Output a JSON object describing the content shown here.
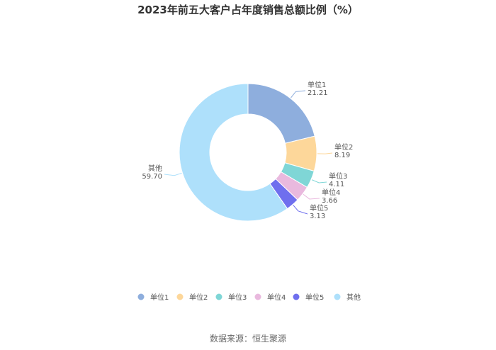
{
  "title": "2023年前五大客户占年度销售总额比例（%）",
  "source": "数据来源：恒生聚源",
  "chart_data": {
    "type": "pie",
    "donut": true,
    "categories": [
      "单位1",
      "单位2",
      "单位3",
      "单位4",
      "单位5",
      "其他"
    ],
    "values": [
      21.21,
      8.19,
      4.11,
      3.66,
      3.13,
      59.7
    ],
    "value_labels": [
      "21.21",
      "8.19",
      "4.11",
      "3.66",
      "3.13",
      "59.70"
    ],
    "colors": [
      "#8eaedd",
      "#fdd79a",
      "#7fd6d6",
      "#e9b9de",
      "#6f6fee",
      "#aee0fb"
    ],
    "legend_position": "bottom"
  }
}
